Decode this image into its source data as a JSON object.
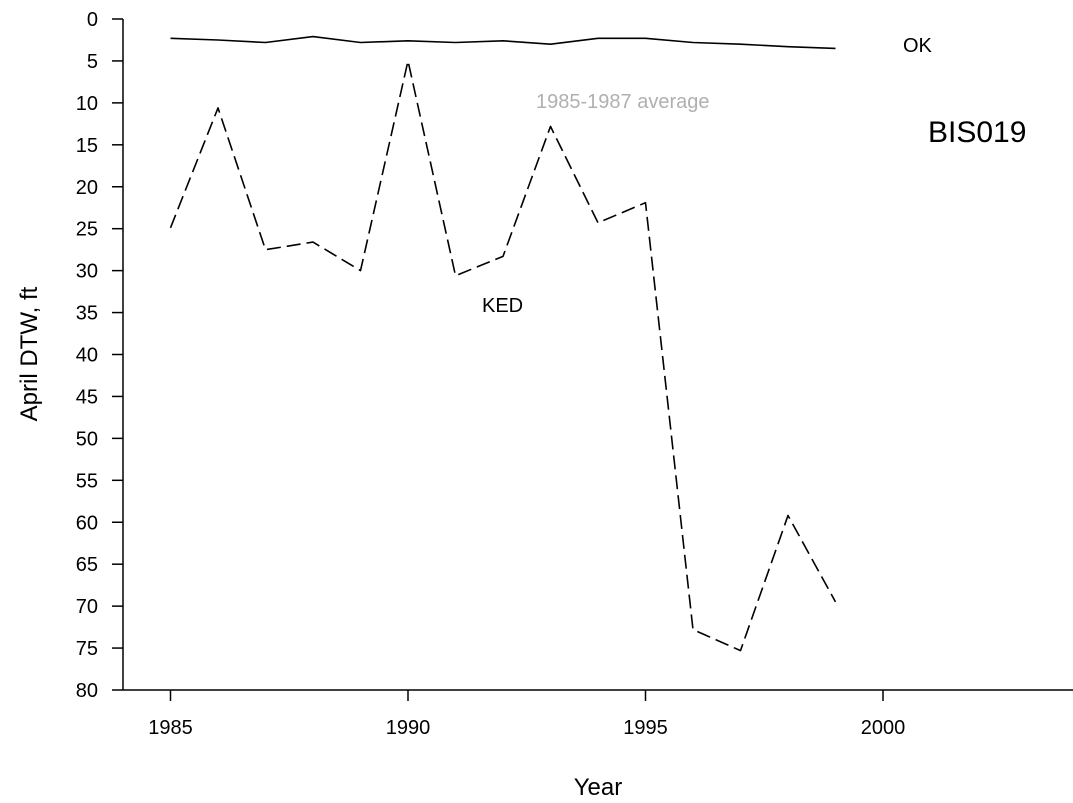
{
  "chart_data": {
    "type": "line",
    "xlabel": "Year",
    "ylabel": "April DTW, ft",
    "xlim": [
      1984,
      2004
    ],
    "ylim": [
      80,
      0
    ],
    "y_inverted": true,
    "xticks": [
      1985,
      1990,
      1995,
      2000
    ],
    "yticks": [
      0,
      5,
      10,
      15,
      20,
      25,
      30,
      35,
      40,
      45,
      50,
      55,
      60,
      65,
      70,
      75,
      80
    ],
    "grid": false,
    "series": [
      {
        "name": "OK",
        "style": "solid",
        "color": "#000000",
        "x": [
          1985,
          1986,
          1987,
          1988,
          1989,
          1990,
          1991,
          1992,
          1993,
          1994,
          1995,
          1996,
          1997,
          1998,
          1999
        ],
        "y": [
          2.3,
          2.5,
          2.8,
          2.1,
          2.8,
          2.6,
          2.8,
          2.6,
          3.0,
          2.3,
          2.3,
          2.8,
          3.0,
          3.3,
          3.5
        ]
      },
      {
        "name": "KED",
        "style": "dashed",
        "color": "#000000",
        "x": [
          1985,
          1986,
          1987,
          1988,
          1989,
          1990,
          1991,
          1992,
          1993,
          1994,
          1995,
          1996,
          1997,
          1998,
          1999
        ],
        "y": [
          24.9,
          10.6,
          27.5,
          26.6,
          30.0,
          5.0,
          30.6,
          28.3,
          12.8,
          24.3,
          21.9,
          72.8,
          75.3,
          59.2,
          69.5
        ]
      }
    ],
    "annotations": {
      "ok_label": "OK",
      "ked_label": "KED",
      "avg_label": "1985-1987 average",
      "station_label": "BIS019"
    }
  }
}
